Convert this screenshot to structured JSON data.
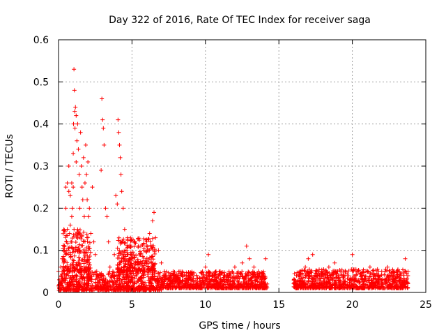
{
  "chart_data": {
    "type": "scatter",
    "title": "Day 322 of 2016, Rate Of TEC Index for receiver saga",
    "xlabel": "GPS time / hours",
    "ylabel": "ROTI / TECUs",
    "xlim": [
      0,
      25
    ],
    "ylim": [
      0,
      0.6
    ],
    "x_ticks": [
      0,
      5,
      10,
      15,
      20,
      25
    ],
    "y_ticks": [
      0,
      0.1,
      0.2,
      0.3,
      0.4,
      0.5,
      0.6
    ],
    "x_tick_labels": [
      "0",
      "5",
      "10",
      "15",
      "20",
      "25"
    ],
    "y_tick_labels": [
      "0",
      "0.1",
      "0.2",
      "0.3",
      "0.4",
      "0.5",
      "0.6"
    ],
    "grid": true,
    "marker": "+",
    "color": "#ff0000",
    "series": [
      {
        "name": "ROTI",
        "points": [
          [
            0.0,
            0.05
          ],
          [
            0.05,
            0.03
          ],
          [
            0.1,
            0.02
          ],
          [
            0.15,
            0.06
          ],
          [
            0.2,
            0.04
          ],
          [
            0.25,
            0.08
          ],
          [
            0.3,
            0.05
          ],
          [
            0.35,
            0.07
          ],
          [
            0.4,
            0.1
          ],
          [
            0.45,
            0.06
          ],
          [
            0.5,
            0.09
          ],
          [
            0.5,
            0.2
          ],
          [
            0.5,
            0.25
          ],
          [
            0.55,
            0.12
          ],
          [
            0.6,
            0.15
          ],
          [
            0.6,
            0.26
          ],
          [
            0.65,
            0.1
          ],
          [
            0.7,
            0.24
          ],
          [
            0.7,
            0.3
          ],
          [
            0.75,
            0.14
          ],
          [
            0.8,
            0.16
          ],
          [
            0.8,
            0.23
          ],
          [
            0.85,
            0.12
          ],
          [
            0.9,
            0.18
          ],
          [
            0.9,
            0.26
          ],
          [
            0.95,
            0.2
          ],
          [
            1.0,
            0.25
          ],
          [
            1.0,
            0.33
          ],
          [
            1.02,
            0.4
          ],
          [
            1.05,
            0.53
          ],
          [
            1.08,
            0.48
          ],
          [
            1.1,
            0.43
          ],
          [
            1.12,
            0.39
          ],
          [
            1.15,
            0.44
          ],
          [
            1.2,
            0.42
          ],
          [
            1.2,
            0.31
          ],
          [
            1.25,
            0.36
          ],
          [
            1.3,
            0.4
          ],
          [
            1.35,
            0.34
          ],
          [
            1.4,
            0.28
          ],
          [
            1.45,
            0.2
          ],
          [
            1.5,
            0.38
          ],
          [
            1.55,
            0.3
          ],
          [
            1.6,
            0.25
          ],
          [
            1.65,
            0.22
          ],
          [
            1.7,
            0.32
          ],
          [
            1.75,
            0.18
          ],
          [
            1.8,
            0.26
          ],
          [
            1.85,
            0.35
          ],
          [
            1.9,
            0.28
          ],
          [
            1.95,
            0.22
          ],
          [
            2.0,
            0.31
          ],
          [
            2.05,
            0.18
          ],
          [
            2.1,
            0.2
          ],
          [
            2.2,
            0.14
          ],
          [
            2.3,
            0.25
          ],
          [
            2.4,
            0.12
          ],
          [
            2.5,
            0.09
          ],
          [
            2.6,
            0.05
          ],
          [
            2.7,
            0.04
          ],
          [
            2.8,
            0.03
          ],
          [
            2.9,
            0.29
          ],
          [
            2.95,
            0.46
          ],
          [
            3.0,
            0.41
          ],
          [
            3.05,
            0.39
          ],
          [
            3.1,
            0.35
          ],
          [
            3.2,
            0.2
          ],
          [
            3.3,
            0.18
          ],
          [
            3.4,
            0.12
          ],
          [
            3.5,
            0.06
          ],
          [
            3.6,
            0.04
          ],
          [
            3.7,
            0.05
          ],
          [
            3.8,
            0.09
          ],
          [
            3.9,
            0.23
          ],
          [
            4.0,
            0.21
          ],
          [
            4.05,
            0.41
          ],
          [
            4.1,
            0.38
          ],
          [
            4.15,
            0.35
          ],
          [
            4.2,
            0.32
          ],
          [
            4.25,
            0.28
          ],
          [
            4.3,
            0.24
          ],
          [
            4.4,
            0.2
          ],
          [
            4.5,
            0.15
          ],
          [
            4.6,
            0.1
          ],
          [
            4.7,
            0.13
          ],
          [
            4.8,
            0.08
          ],
          [
            4.9,
            0.06
          ],
          [
            5.0,
            0.08
          ],
          [
            5.2,
            0.12
          ],
          [
            5.4,
            0.07
          ],
          [
            5.6,
            0.11
          ],
          [
            5.8,
            0.1
          ],
          [
            6.0,
            0.12
          ],
          [
            6.2,
            0.14
          ],
          [
            6.4,
            0.17
          ],
          [
            6.5,
            0.19
          ],
          [
            6.6,
            0.13
          ],
          [
            6.8,
            0.1
          ],
          [
            7.0,
            0.07
          ],
          [
            7.2,
            0.05
          ],
          [
            7.5,
            0.04
          ],
          [
            7.8,
            0.05
          ],
          [
            8.0,
            0.03
          ],
          [
            8.3,
            0.04
          ],
          [
            8.6,
            0.02
          ],
          [
            9.0,
            0.03
          ],
          [
            9.4,
            0.04
          ],
          [
            9.8,
            0.05
          ],
          [
            10.0,
            0.06
          ],
          [
            10.2,
            0.09
          ],
          [
            10.5,
            0.04
          ],
          [
            11.0,
            0.05
          ],
          [
            11.5,
            0.04
          ],
          [
            12.0,
            0.06
          ],
          [
            12.5,
            0.07
          ],
          [
            12.8,
            0.11
          ],
          [
            13.0,
            0.08
          ],
          [
            13.3,
            0.06
          ],
          [
            13.6,
            0.05
          ],
          [
            13.9,
            0.04
          ],
          [
            14.0,
            0.03
          ],
          [
            14.1,
            0.08
          ],
          [
            14.2,
            0.02
          ],
          [
            16.2,
            0.04
          ],
          [
            16.5,
            0.05
          ],
          [
            16.8,
            0.06
          ],
          [
            17.0,
            0.08
          ],
          [
            17.3,
            0.09
          ],
          [
            17.6,
            0.05
          ],
          [
            18.0,
            0.04
          ],
          [
            18.4,
            0.06
          ],
          [
            18.8,
            0.07
          ],
          [
            19.0,
            0.05
          ],
          [
            19.5,
            0.04
          ],
          [
            20.0,
            0.09
          ],
          [
            20.4,
            0.05
          ],
          [
            20.8,
            0.04
          ],
          [
            21.2,
            0.06
          ],
          [
            21.6,
            0.03
          ],
          [
            22.0,
            0.05
          ],
          [
            22.4,
            0.06
          ],
          [
            22.8,
            0.04
          ],
          [
            23.2,
            0.05
          ],
          [
            23.6,
            0.08
          ],
          [
            23.7,
            0.03
          ]
        ],
        "dense_bands": [
          {
            "x": [
              0.0,
              7.0
            ],
            "y": [
              0.005,
              0.05
            ]
          },
          {
            "x": [
              7.0,
              14.2
            ],
            "y": [
              0.01,
              0.05
            ]
          },
          {
            "x": [
              16.0,
              23.8
            ],
            "y": [
              0.01,
              0.055
            ]
          },
          {
            "x": [
              0.3,
              2.2
            ],
            "y": [
              0.05,
              0.15
            ]
          },
          {
            "x": [
              4.0,
              6.6
            ],
            "y": [
              0.05,
              0.13
            ]
          }
        ]
      }
    ]
  }
}
